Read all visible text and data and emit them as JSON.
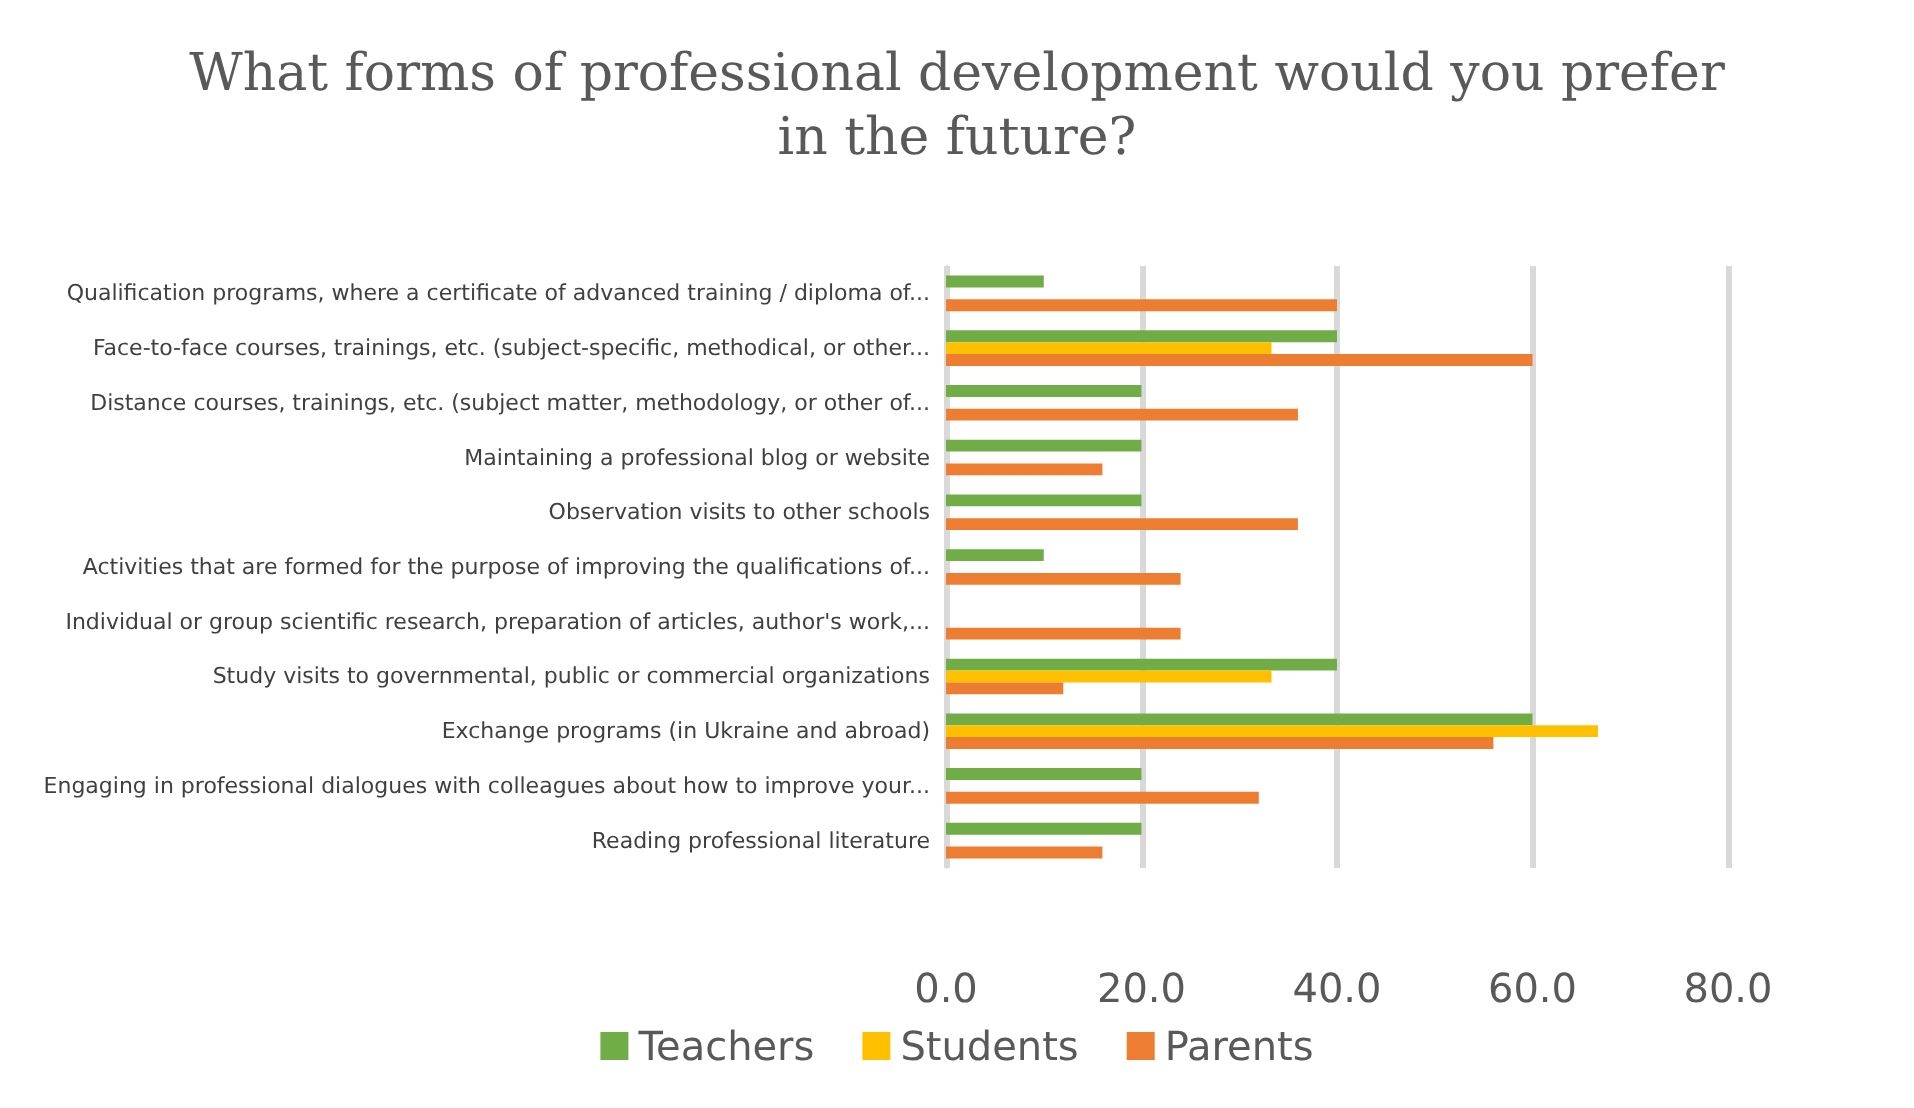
{
  "chart_data": {
    "type": "bar",
    "orientation": "horizontal",
    "title": "What forms of professional development would you prefer\nin the future?",
    "categories": [
      "Qualification programs, where a certificate of advanced training / diploma of...",
      "Face-to-face courses, trainings, etc. (subject-specific, methodical, or other...",
      "Distance courses, trainings, etc. (subject matter, methodology, or other of...",
      "Maintaining a professional blog or website",
      "Observation visits to other schools",
      "Activities that are formed for the purpose of improving the qualifications of...",
      "Individual or group scientific research, preparation of articles, author's work,...",
      "Study visits to governmental, public or commercial organizations",
      "Exchange programs (in Ukraine and abroad)",
      "Engaging in professional dialogues with colleagues about how to improve your...",
      "Reading professional literature"
    ],
    "series": [
      {
        "name": "Teachers",
        "color": "#70ad47",
        "values": [
          10,
          40,
          20,
          20,
          20,
          10,
          0,
          40,
          60,
          20,
          20
        ]
      },
      {
        "name": "Students",
        "color": "#ffc000",
        "values": [
          0,
          33.3,
          0,
          0,
          0,
          0,
          0,
          33.3,
          66.7,
          0,
          0
        ]
      },
      {
        "name": "Parents",
        "color": "#ed7d31",
        "values": [
          40,
          60,
          36,
          16,
          36,
          24,
          24,
          12,
          56,
          32,
          16
        ]
      }
    ],
    "xlim": [
      0,
      80
    ],
    "xticks": [
      {
        "value": 0,
        "label": "0.0"
      },
      {
        "value": 20,
        "label": "20.0"
      },
      {
        "value": 40,
        "label": "40.0"
      },
      {
        "value": 60,
        "label": "60.0"
      },
      {
        "value": 80,
        "label": "80.0"
      }
    ],
    "grid": "x",
    "legend": "bottom"
  }
}
